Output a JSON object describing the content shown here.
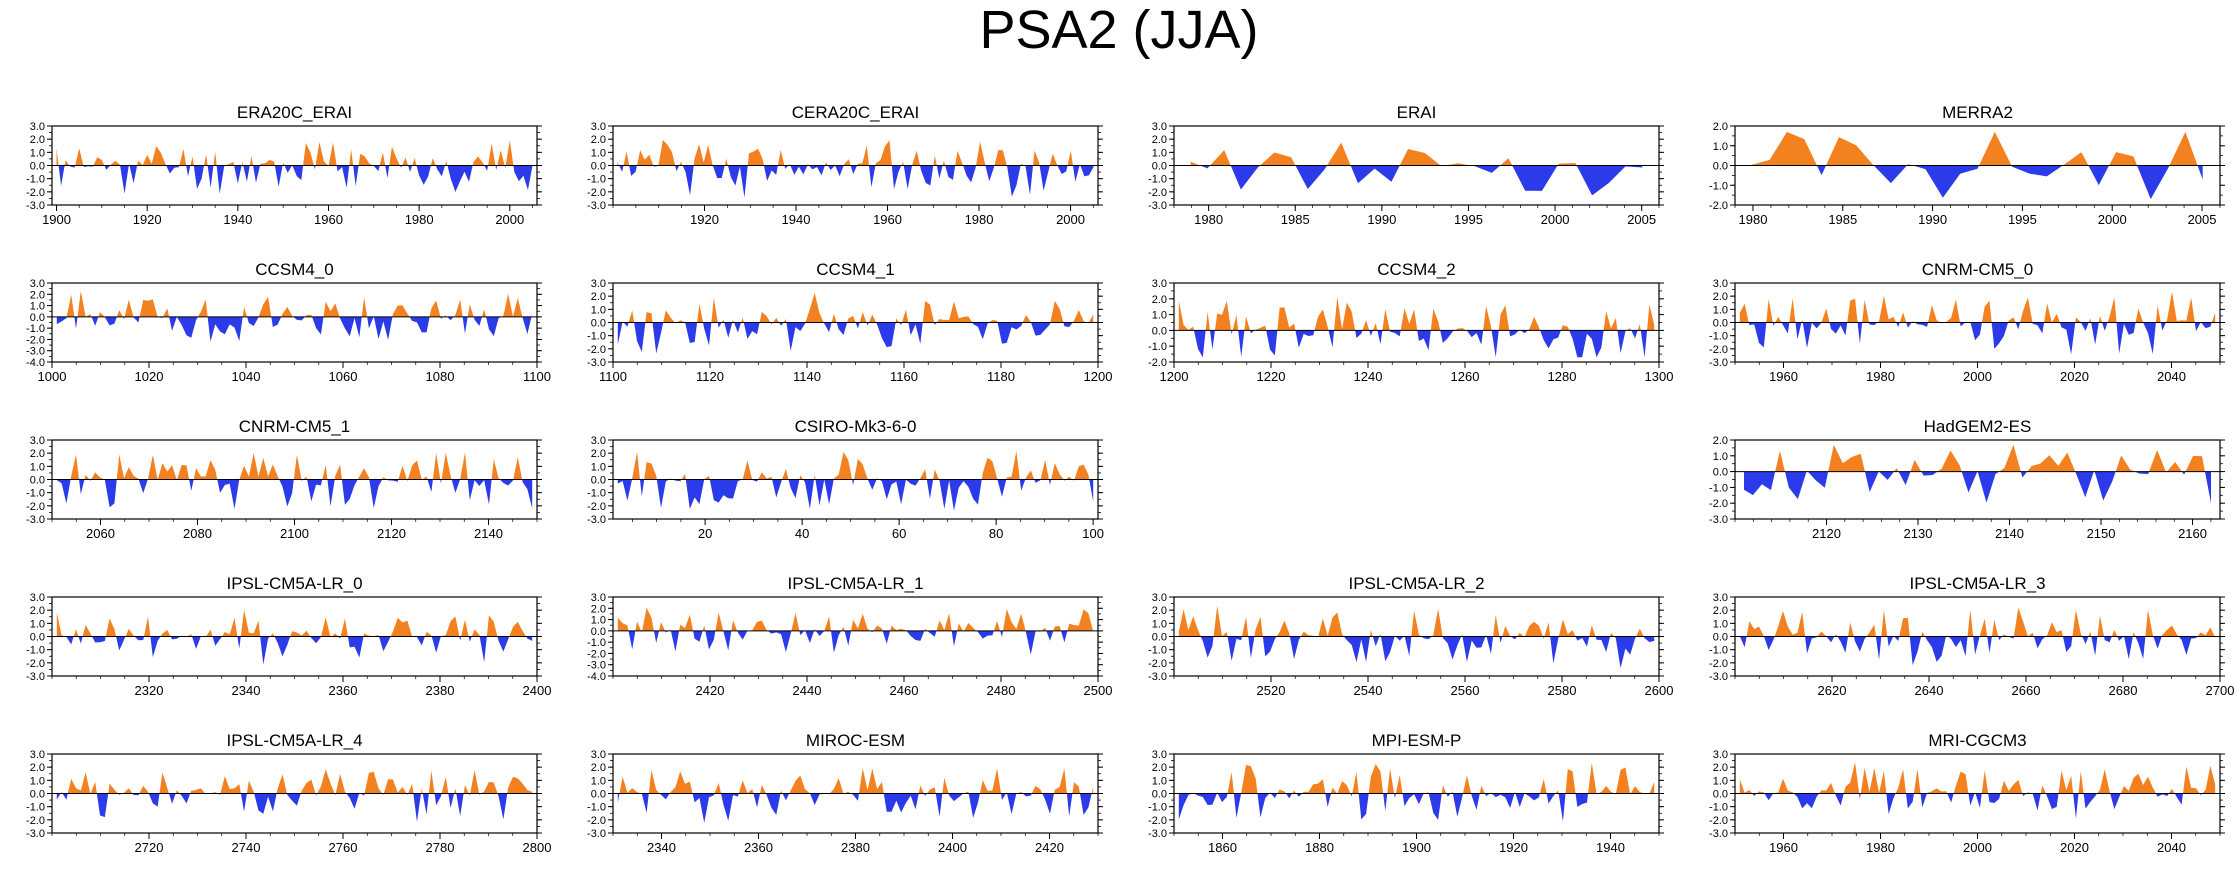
{
  "page": {
    "title": "PSA2 (JJA)"
  },
  "colors": {
    "positive": "#f4811f",
    "negative": "#2b3bea",
    "axis": "#000000"
  },
  "chart_data": [
    {
      "title": "ERA20C_ERAI",
      "type": "area",
      "xlim": [
        1899,
        2006
      ],
      "ylim": [
        -3,
        3
      ],
      "yticks": [
        3,
        2,
        1,
        0,
        -1,
        -2,
        -3
      ],
      "ytick_labels": [
        "3.0",
        "2.0",
        "1.0",
        "0.0",
        "-1.0",
        "-2.0",
        "-3.0"
      ],
      "xticks": [
        1900,
        1920,
        1940,
        1960,
        1980,
        2000
      ],
      "seed": 11,
      "amp": 1.0,
      "n": 106
    },
    {
      "title": "CERA20C_ERAI",
      "type": "area",
      "xlim": [
        1900,
        2006
      ],
      "ylim": [
        -3,
        3
      ],
      "yticks": [
        3,
        2,
        1,
        0,
        -1,
        -2,
        -3
      ],
      "ytick_labels": [
        "3.0",
        "2.0",
        "1.0",
        "0.0",
        "-1.0",
        "-2.0",
        "-3.0"
      ],
      "xticks": [
        1920,
        1940,
        1960,
        1980,
        2000
      ],
      "seed": 12,
      "amp": 1.0,
      "n": 106
    },
    {
      "title": "ERAI",
      "type": "area",
      "xlim": [
        1978,
        2006
      ],
      "ylim": [
        -3,
        3
      ],
      "yticks": [
        3,
        2,
        1,
        0,
        -1,
        -2,
        -3
      ],
      "ytick_labels": [
        "3.0",
        "2.0",
        "1.0",
        "0.0",
        "-1.0",
        "-2.0",
        "-3.0"
      ],
      "xticks": [
        1980,
        1985,
        1990,
        1995,
        2000,
        2005
      ],
      "seed": 13,
      "amp": 1.0,
      "n": 28
    },
    {
      "title": "MERRA2",
      "type": "area",
      "xlim": [
        1979,
        2006
      ],
      "ylim": [
        -2,
        2
      ],
      "yticks": [
        2,
        1,
        0,
        -1,
        -2
      ],
      "ytick_labels": [
        "2.0",
        "1.0",
        "0.0",
        "-1.0",
        "-2.0"
      ],
      "xticks": [
        1980,
        1985,
        1990,
        1995,
        2000,
        2005
      ],
      "seed": 14,
      "amp": 1.0,
      "n": 27
    },
    {
      "title": "CCSM4_0",
      "type": "area",
      "xlim": [
        1000,
        1100
      ],
      "ylim": [
        -4,
        3
      ],
      "yticks": [
        3,
        2,
        1,
        0,
        -1,
        -2,
        -3,
        -4
      ],
      "ytick_labels": [
        "3.0",
        "2.0",
        "1.0",
        "0.0",
        "-1.0",
        "-2.0",
        "-3.0",
        "-4.0"
      ],
      "xticks": [
        1000,
        1020,
        1040,
        1060,
        1080,
        1100
      ],
      "seed": 21,
      "amp": 1.0,
      "n": 100
    },
    {
      "title": "CCSM4_1",
      "type": "area",
      "xlim": [
        1100,
        1200
      ],
      "ylim": [
        -3,
        3
      ],
      "yticks": [
        3,
        2,
        1,
        0,
        -1,
        -2,
        -3
      ],
      "ytick_labels": [
        "3.0",
        "2.0",
        "1.0",
        "0.0",
        "-1.0",
        "-2.0",
        "-3.0"
      ],
      "xticks": [
        1100,
        1120,
        1140,
        1160,
        1180,
        1200
      ],
      "seed": 22,
      "amp": 1.0,
      "n": 100
    },
    {
      "title": "CCSM4_2",
      "type": "area",
      "xlim": [
        1200,
        1300
      ],
      "ylim": [
        -2,
        3
      ],
      "yticks": [
        3,
        2,
        1,
        0,
        -1,
        -2
      ],
      "ytick_labels": [
        "3.0",
        "2.0",
        "1.0",
        "0.0",
        "-1.0",
        "-2.0"
      ],
      "xticks": [
        1200,
        1220,
        1240,
        1260,
        1280,
        1300
      ],
      "seed": 23,
      "amp": 1.0,
      "n": 100
    },
    {
      "title": "CNRM-CM5_0",
      "type": "area",
      "xlim": [
        1950,
        2050
      ],
      "ylim": [
        -3,
        3
      ],
      "yticks": [
        3,
        2,
        1,
        0,
        -1,
        -2,
        -3
      ],
      "ytick_labels": [
        "3.0",
        "2.0",
        "1.0",
        "0.0",
        "-1.0",
        "-2.0",
        "-3.0"
      ],
      "xticks": [
        1960,
        1980,
        2000,
        2020,
        2040
      ],
      "seed": 24,
      "amp": 1.0,
      "n": 100
    },
    {
      "title": "CNRM-CM5_1",
      "type": "area",
      "xlim": [
        2050,
        2150
      ],
      "ylim": [
        -3,
        3
      ],
      "yticks": [
        3,
        2,
        1,
        0,
        -1,
        -2,
        -3
      ],
      "ytick_labels": [
        "3.0",
        "2.0",
        "1.0",
        "0.0",
        "-1.0",
        "-2.0",
        "-3.0"
      ],
      "xticks": [
        2060,
        2080,
        2100,
        2120,
        2140
      ],
      "seed": 31,
      "amp": 1.0,
      "n": 100
    },
    {
      "title": "CSIRO-Mk3-6-0",
      "type": "area",
      "xlim": [
        1,
        101
      ],
      "ylim": [
        -3,
        3
      ],
      "yticks": [
        3,
        2,
        1,
        0,
        -1,
        -2,
        -3
      ],
      "ytick_labels": [
        "3.0",
        "2.0",
        "1.0",
        "0.0",
        "-1.0",
        "-2.0",
        "-3.0"
      ],
      "xticks": [
        20,
        40,
        60,
        80,
        100
      ],
      "seed": 32,
      "amp": 1.0,
      "n": 100
    },
    null,
    {
      "title": "HadGEM2-ES",
      "type": "area",
      "xlim": [
        2110,
        2163
      ],
      "ylim": [
        -3,
        2
      ],
      "yticks": [
        2,
        1,
        0,
        -1,
        -2,
        -3
      ],
      "ytick_labels": [
        "2.0",
        "1.0",
        "0.0",
        "-1.0",
        "-2.0",
        "-3.0"
      ],
      "xticks": [
        2120,
        2130,
        2140,
        2150,
        2160
      ],
      "seed": 34,
      "amp": 1.0,
      "n": 53
    },
    {
      "title": "IPSL-CM5A-LR_0",
      "type": "area",
      "xlim": [
        2300,
        2400
      ],
      "ylim": [
        -3,
        3
      ],
      "yticks": [
        3,
        2,
        1,
        0,
        -1,
        -2,
        -3
      ],
      "ytick_labels": [
        "3.0",
        "2.0",
        "1.0",
        "0.0",
        "-1.0",
        "-2.0",
        "-3.0"
      ],
      "xticks": [
        2320,
        2340,
        2360,
        2380,
        2400
      ],
      "seed": 41,
      "amp": 1.0,
      "n": 100
    },
    {
      "title": "IPSL-CM5A-LR_1",
      "type": "area",
      "xlim": [
        2400,
        2500
      ],
      "ylim": [
        -4,
        3
      ],
      "yticks": [
        3,
        2,
        1,
        0,
        -1,
        -2,
        -3,
        -4
      ],
      "ytick_labels": [
        "3.0",
        "2.0",
        "1.0",
        "0.0",
        "-1.0",
        "-2.0",
        "-3.0",
        "-4.0"
      ],
      "xticks": [
        2420,
        2440,
        2460,
        2480,
        2500
      ],
      "seed": 42,
      "amp": 1.0,
      "n": 100
    },
    {
      "title": "IPSL-CM5A-LR_2",
      "type": "area",
      "xlim": [
        2500,
        2600
      ],
      "ylim": [
        -3,
        3
      ],
      "yticks": [
        3,
        2,
        1,
        0,
        -1,
        -2,
        -3
      ],
      "ytick_labels": [
        "3.0",
        "2.0",
        "1.0",
        "0.0",
        "-1.0",
        "-2.0",
        "-3.0"
      ],
      "xticks": [
        2520,
        2540,
        2560,
        2580,
        2600
      ],
      "seed": 43,
      "amp": 1.0,
      "n": 100
    },
    {
      "title": "IPSL-CM5A-LR_3",
      "type": "area",
      "xlim": [
        2600,
        2700
      ],
      "ylim": [
        -3,
        3
      ],
      "yticks": [
        3,
        2,
        1,
        0,
        -1,
        -2,
        -3
      ],
      "ytick_labels": [
        "3.0",
        "2.0",
        "1.0",
        "0.0",
        "-1.0",
        "-2.0",
        "-3.0"
      ],
      "xticks": [
        2620,
        2640,
        2660,
        2680,
        2700
      ],
      "seed": 44,
      "amp": 1.0,
      "n": 100
    },
    {
      "title": "IPSL-CM5A-LR_4",
      "type": "area",
      "xlim": [
        2700,
        2800
      ],
      "ylim": [
        -3,
        3
      ],
      "yticks": [
        3,
        2,
        1,
        0,
        -1,
        -2,
        -3
      ],
      "ytick_labels": [
        "3.0",
        "2.0",
        "1.0",
        "0.0",
        "-1.0",
        "-2.0",
        "-3.0"
      ],
      "xticks": [
        2720,
        2740,
        2760,
        2780,
        2800
      ],
      "seed": 51,
      "amp": 1.0,
      "n": 100
    },
    {
      "title": "MIROC-ESM",
      "type": "area",
      "xlim": [
        2330,
        2430
      ],
      "ylim": [
        -3,
        3
      ],
      "yticks": [
        3,
        2,
        1,
        0,
        -1,
        -2,
        -3
      ],
      "ytick_labels": [
        "3.0",
        "2.0",
        "1.0",
        "0.0",
        "-1.0",
        "-2.0",
        "-3.0"
      ],
      "xticks": [
        2340,
        2360,
        2380,
        2400,
        2420
      ],
      "seed": 52,
      "amp": 1.0,
      "n": 100
    },
    {
      "title": "MPI-ESM-P",
      "type": "area",
      "xlim": [
        1850,
        1950
      ],
      "ylim": [
        -3,
        3
      ],
      "yticks": [
        3,
        2,
        1,
        0,
        -1,
        -2,
        -3
      ],
      "ytick_labels": [
        "3.0",
        "2.0",
        "1.0",
        "0.0",
        "-1.0",
        "-2.0",
        "-3.0"
      ],
      "xticks": [
        1860,
        1880,
        1900,
        1920,
        1940
      ],
      "seed": 53,
      "amp": 1.0,
      "n": 100
    },
    {
      "title": "MRI-CGCM3",
      "type": "area",
      "xlim": [
        1950,
        2050
      ],
      "ylim": [
        -3,
        3
      ],
      "yticks": [
        3,
        2,
        1,
        0,
        -1,
        -2,
        -3
      ],
      "ytick_labels": [
        "3.0",
        "2.0",
        "1.0",
        "0.0",
        "-1.0",
        "-2.0",
        "-3.0"
      ],
      "xticks": [
        1960,
        1980,
        2000,
        2020,
        2040
      ],
      "seed": 54,
      "amp": 1.0,
      "n": 100
    }
  ]
}
